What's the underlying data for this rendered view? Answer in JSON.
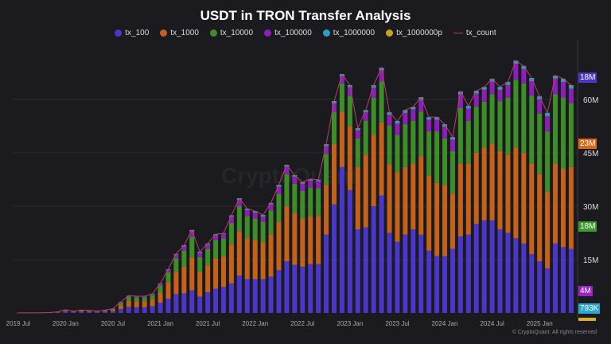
{
  "chart_data": {
    "type": "bar",
    "stacked": true,
    "title": "USDT in TRON Transfer Analysis",
    "xlabel": "",
    "ylabel": "",
    "ylim": [
      0,
      74.5
    ],
    "y_unit": "M",
    "yticks": [
      "15M",
      "30M",
      "45M",
      "60M"
    ],
    "ytick_values": [
      15,
      30,
      45,
      60
    ],
    "y_axis_position": "right",
    "grid": true,
    "legend_position": "top",
    "xtick_labels": [
      "2019 Jul",
      "2020 Jan",
      "2020 Jul",
      "2021 Jan",
      "2021 Jul",
      "2022 Jan",
      "2022 Jul",
      "2023 Jan",
      "2023 Jul",
      "2024 Jan",
      "2024 Jul",
      "2025 Jan"
    ],
    "xtick_months": [
      "2019-07",
      "2020-01",
      "2020-07",
      "2021-01",
      "2021-07",
      "2022-01",
      "2022-07",
      "2023-01",
      "2023-07",
      "2024-01",
      "2024-07",
      "2025-01"
    ],
    "categories": [
      "2019-07",
      "2019-08",
      "2019-09",
      "2019-10",
      "2019-11",
      "2019-12",
      "2020-01",
      "2020-02",
      "2020-03",
      "2020-04",
      "2020-05",
      "2020-06",
      "2020-07",
      "2020-08",
      "2020-09",
      "2020-10",
      "2020-11",
      "2020-12",
      "2021-01",
      "2021-02",
      "2021-03",
      "2021-04",
      "2021-05",
      "2021-06",
      "2021-07",
      "2021-08",
      "2021-09",
      "2021-10",
      "2021-11",
      "2021-12",
      "2022-01",
      "2022-02",
      "2022-03",
      "2022-04",
      "2022-05",
      "2022-06",
      "2022-07",
      "2022-08",
      "2022-09",
      "2022-10",
      "2022-11",
      "2022-12",
      "2023-01",
      "2023-02",
      "2023-03",
      "2023-04",
      "2023-05",
      "2023-06",
      "2023-07",
      "2023-08",
      "2023-09",
      "2023-10",
      "2023-11",
      "2023-12",
      "2024-01",
      "2024-02",
      "2024-03",
      "2024-04",
      "2024-05",
      "2024-06",
      "2024-07",
      "2024-08",
      "2024-09",
      "2024-10",
      "2024-11",
      "2024-12",
      "2025-01",
      "2025-02",
      "2025-03",
      "2025-04",
      "2025-05"
    ],
    "series": [
      {
        "name": "tx_100",
        "color": "#4a36c9",
        "values": [
          0.01,
          0.01,
          0.02,
          0.03,
          0.05,
          0.15,
          0.5,
          0.28,
          0.45,
          0.38,
          0.27,
          0.4,
          0.5,
          1.1,
          1.7,
          1.6,
          1.6,
          1.9,
          2.9,
          4.0,
          5.3,
          5.5,
          6.3,
          4.6,
          5.8,
          6.8,
          7.3,
          8.3,
          10.5,
          9.5,
          9.5,
          9.5,
          10.2,
          12.0,
          14.5,
          13.5,
          13.0,
          13.7,
          13.7,
          22.0,
          30.5,
          41.0,
          34.5,
          23.5,
          24.0,
          30.0,
          33.0,
          22.5,
          20.0,
          22.0,
          23.5,
          22.0,
          17.5,
          16.0,
          16.0,
          18.0,
          21.5,
          22.0,
          25.0,
          26.0,
          26.0,
          23.5,
          22.5,
          21.0,
          19.5,
          16.5,
          14.5,
          12.5,
          19.5,
          18.5,
          18
        ]
      },
      {
        "name": "tx_1000",
        "color": "#c4611b",
        "values": [
          0.01,
          0.01,
          0.01,
          0.02,
          0.03,
          0.1,
          0.25,
          0.14,
          0.22,
          0.2,
          0.15,
          0.25,
          0.4,
          1.1,
          1.8,
          1.7,
          1.7,
          1.9,
          2.9,
          4.6,
          6.3,
          7.5,
          9.3,
          6.9,
          7.6,
          8.5,
          8.6,
          11.0,
          12.5,
          11.5,
          11.0,
          10.3,
          11.9,
          13.5,
          15.5,
          14.5,
          13.5,
          13.5,
          13.5,
          14.0,
          17.0,
          15.5,
          18.0,
          17.5,
          20.5,
          20.0,
          20.5,
          19.3,
          19.5,
          19.0,
          18.5,
          22.0,
          21.0,
          20.5,
          20.0,
          15.5,
          20.5,
          20.0,
          20.0,
          20.5,
          21.5,
          22.0,
          22.0,
          25.5,
          25.5,
          25.5,
          24.5,
          21.5,
          22.5,
          22.0,
          23
        ]
      },
      {
        "name": "tx_10000",
        "color": "#3d8e29",
        "values": [
          0,
          0,
          0,
          0,
          0.02,
          0.05,
          0.12,
          0.07,
          0.11,
          0.1,
          0.07,
          0.12,
          0.23,
          0.7,
          1.1,
          1.1,
          1.1,
          1.2,
          1.9,
          2.8,
          3.8,
          4.5,
          5.8,
          4.2,
          4.6,
          5.2,
          5.0,
          6.0,
          7.0,
          6.2,
          6.0,
          5.8,
          6.7,
          8.0,
          9.0,
          8.3,
          7.8,
          8.0,
          7.8,
          8.7,
          9.0,
          8.0,
          8.5,
          8.0,
          9.5,
          10.5,
          11.5,
          10.9,
          10.5,
          12.0,
          12.0,
          12.5,
          12.5,
          14.5,
          13.0,
          12.0,
          15.5,
          12.0,
          13.0,
          12.8,
          14.0,
          14.0,
          16.0,
          19.0,
          19.5,
          19.0,
          17.0,
          17.0,
          19.5,
          20.0,
          18
        ]
      },
      {
        "name": "tx_100000",
        "color": "#8b1fb6",
        "values": [
          0,
          0,
          0,
          0,
          0,
          0,
          0.03,
          0.01,
          0.02,
          0.02,
          0.01,
          0.03,
          0.06,
          0.17,
          0.25,
          0.25,
          0.25,
          0.3,
          0.5,
          0.75,
          1.0,
          1.2,
          1.5,
          1.2,
          1.2,
          1.3,
          1.3,
          1.8,
          1.8,
          1.7,
          1.7,
          1.5,
          1.7,
          2.0,
          2.1,
          2.0,
          2.0,
          2.0,
          2.0,
          2.2,
          2.4,
          2.0,
          2.4,
          2.3,
          2.4,
          2.8,
          3.1,
          3.0,
          3.2,
          3.2,
          3.2,
          3.3,
          3.3,
          3.3,
          3.3,
          3.2,
          3.9,
          3.4,
          3.6,
          3.4,
          3.5,
          3.2,
          3.6,
          4.5,
          4.0,
          4.1,
          4.0,
          4.3,
          4.3,
          4.4,
          4
        ]
      },
      {
        "name": "tx_1000000",
        "color": "#2a9fc2",
        "values": [
          0,
          0,
          0,
          0,
          0,
          0,
          0,
          0,
          0,
          0,
          0,
          0,
          0.01,
          0.03,
          0.05,
          0.05,
          0.05,
          0.06,
          0.08,
          0.12,
          0.15,
          0.2,
          0.3,
          0.2,
          0.2,
          0.2,
          0.2,
          0.2,
          0.3,
          0.3,
          0.3,
          0.3,
          0.3,
          0.4,
          0.4,
          0.3,
          0.3,
          0.3,
          0.3,
          0.4,
          0.5,
          0.5,
          0.5,
          0.5,
          0.5,
          0.6,
          0.7,
          0.6,
          0.6,
          0.7,
          0.6,
          0.7,
          0.6,
          0.6,
          0.6,
          0.6,
          0.7,
          0.7,
          0.7,
          0.7,
          0.7,
          0.7,
          0.7,
          0.8,
          0.8,
          0.8,
          0.8,
          0.8,
          0.8,
          0.8,
          0.793
        ]
      },
      {
        "name": "tx_1000000p",
        "color": "#c9a121",
        "values": [
          0,
          0,
          0,
          0,
          0,
          0,
          0,
          0,
          0,
          0,
          0,
          0,
          0,
          0,
          0,
          0,
          0,
          0.04,
          0.02,
          0.03,
          0.05,
          0.1,
          0.1,
          0.1,
          0.1,
          0.1,
          0,
          0.1,
          0.1,
          0.1,
          0.1,
          0.1,
          0.1,
          0.1,
          0.1,
          0.1,
          0.1,
          0.1,
          0.1,
          0.1,
          0.1,
          0.1,
          0.1,
          0.1,
          0.1,
          0.1,
          0.1,
          0.1,
          0.1,
          0.1,
          0.1,
          0.1,
          0.1,
          0.1,
          0.1,
          0.1,
          0.1,
          0.1,
          0.1,
          0.1,
          0.1,
          0.1,
          0.1,
          0.1,
          0.1,
          0.1,
          0.1,
          0.1,
          0.1,
          0.1,
          0.2
        ]
      }
    ],
    "line_series": {
      "name": "tx_count",
      "color": "#b8406c",
      "values": [
        0.02,
        0.02,
        0.03,
        0.05,
        0.1,
        0.3,
        0.9,
        0.5,
        0.8,
        0.7,
        0.5,
        0.8,
        1.2,
        3.1,
        4.9,
        4.7,
        4.7,
        5.4,
        8.3,
        12.3,
        16.6,
        19.0,
        23.3,
        17.2,
        19.5,
        22.1,
        22.4,
        27.4,
        32.2,
        29.3,
        28.6,
        27.5,
        30.9,
        36.0,
        41.6,
        38.7,
        36.7,
        37.6,
        37.4,
        47.4,
        59.5,
        67.1,
        64.0,
        51.9,
        57.0,
        64.0,
        68.9,
        56.4,
        53.9,
        57.0,
        57.9,
        60.6,
        55.0,
        55.0,
        53.0,
        49.4,
        62.2,
        58.2,
        62.4,
        63.5,
        65.8,
        63.5,
        64.9,
        70.9,
        69.4,
        66.0,
        60.9,
        56.2,
        66.7,
        65.8,
        64.0
      ]
    },
    "last_value_labels": [
      {
        "series": "tx_100",
        "text": "18M",
        "color": "#4a36c9"
      },
      {
        "series": "tx_1000",
        "text": "23M",
        "color": "#d9681a"
      },
      {
        "series": "tx_10000",
        "text": "18M",
        "color": "#3d9a2a"
      },
      {
        "series": "tx_100000",
        "text": "4M",
        "color": "#9a22c8"
      },
      {
        "series": "tx_1000000",
        "text": "793K",
        "color": "#2aa7cc"
      },
      {
        "series": "tx_1000000p",
        "text": "",
        "color": "#d8b021"
      }
    ]
  },
  "watermark": "CryptoQuant",
  "footer": "© CryptoQuant. All rights reserved"
}
